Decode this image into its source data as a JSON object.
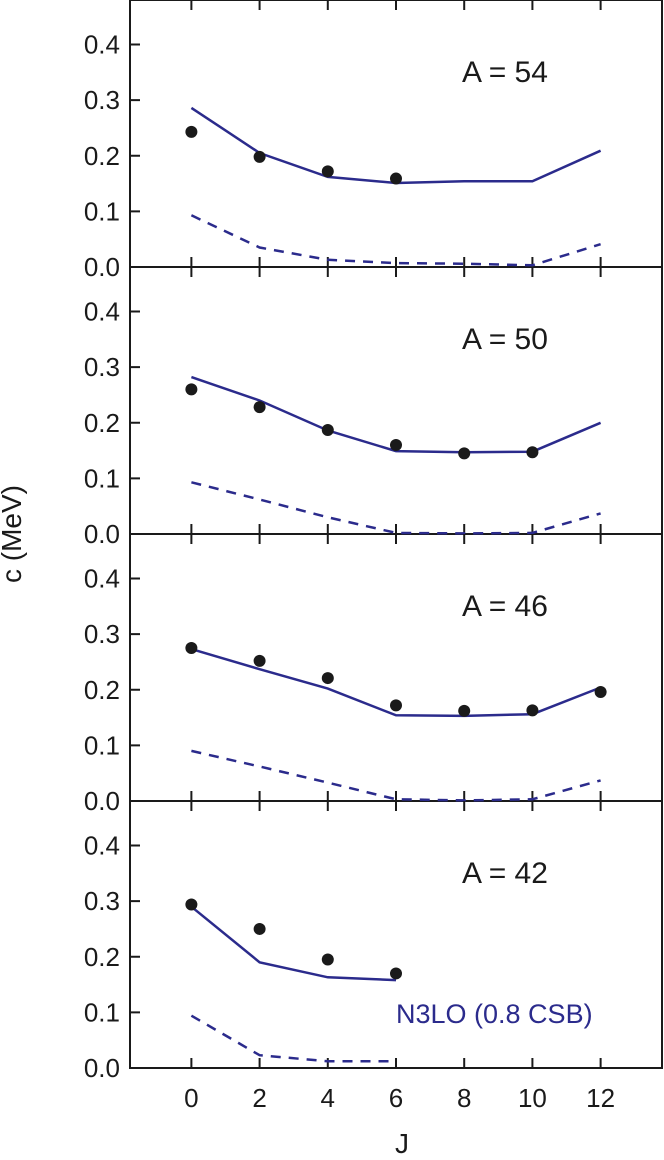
{
  "chart_data": {
    "type": "line",
    "xlabel": "J",
    "ylabel": "c (MeV)",
    "xlim": [
      -1.8,
      13.8
    ],
    "ylim": [
      0,
      0.48
    ],
    "x_ticks": [
      0,
      2,
      4,
      6,
      8,
      10,
      12
    ],
    "y_ticks": [
      0.0,
      0.1,
      0.2,
      0.3,
      0.4
    ],
    "annotation": "N3LO (0.8 CSB)",
    "colors": {
      "solid": "#2b2b8c",
      "dashed": "#2b2b8c",
      "points": "#1a1a1a",
      "legend": "#2b2b8c"
    },
    "panels": [
      {
        "label": "A = 54",
        "solid": {
          "x": [
            0,
            2,
            4,
            6,
            8,
            10,
            12
          ],
          "y": [
            0.286,
            0.205,
            0.162,
            0.151,
            0.154,
            0.154,
            0.209
          ]
        },
        "dashed": {
          "x": [
            0,
            2,
            4,
            6,
            8,
            10,
            12
          ],
          "y": [
            0.093,
            0.035,
            0.013,
            0.007,
            0.006,
            0.003,
            0.041
          ]
        },
        "points": {
          "x": [
            0,
            2,
            4,
            6
          ],
          "y": [
            0.243,
            0.198,
            0.172,
            0.159
          ]
        }
      },
      {
        "label": "A = 50",
        "solid": {
          "x": [
            0,
            2,
            4,
            6,
            8,
            10,
            12
          ],
          "y": [
            0.282,
            0.24,
            0.186,
            0.149,
            0.147,
            0.148,
            0.2
          ]
        },
        "dashed": {
          "x": [
            0,
            2,
            4,
            6,
            8,
            10,
            12
          ],
          "y": [
            0.093,
            0.062,
            0.03,
            0.002,
            0.001,
            0.002,
            0.037
          ]
        },
        "points": {
          "x": [
            0,
            2,
            4,
            6,
            8,
            10
          ],
          "y": [
            0.26,
            0.228,
            0.187,
            0.16,
            0.145,
            0.147
          ]
        }
      },
      {
        "label": "A = 46",
        "solid": {
          "x": [
            0,
            2,
            4,
            6,
            8,
            10,
            12
          ],
          "y": [
            0.273,
            0.237,
            0.202,
            0.154,
            0.153,
            0.156,
            0.204
          ]
        },
        "dashed": {
          "x": [
            0,
            2,
            4,
            6,
            8,
            10,
            12
          ],
          "y": [
            0.09,
            0.062,
            0.033,
            0.003,
            0.001,
            0.003,
            0.037
          ]
        },
        "points": {
          "x": [
            0,
            2,
            4,
            6,
            8,
            10,
            12
          ],
          "y": [
            0.275,
            0.252,
            0.221,
            0.172,
            0.162,
            0.163,
            0.196
          ]
        }
      },
      {
        "label": "A = 42",
        "solid": {
          "x": [
            0,
            2,
            4,
            6
          ],
          "y": [
            0.29,
            0.19,
            0.163,
            0.158
          ]
        },
        "dashed": {
          "x": [
            0,
            2,
            4,
            6
          ],
          "y": [
            0.094,
            0.023,
            0.012,
            0.012
          ]
        },
        "points": {
          "x": [
            0,
            2,
            4,
            6
          ],
          "y": [
            0.294,
            0.25,
            0.195,
            0.17
          ]
        }
      }
    ]
  }
}
